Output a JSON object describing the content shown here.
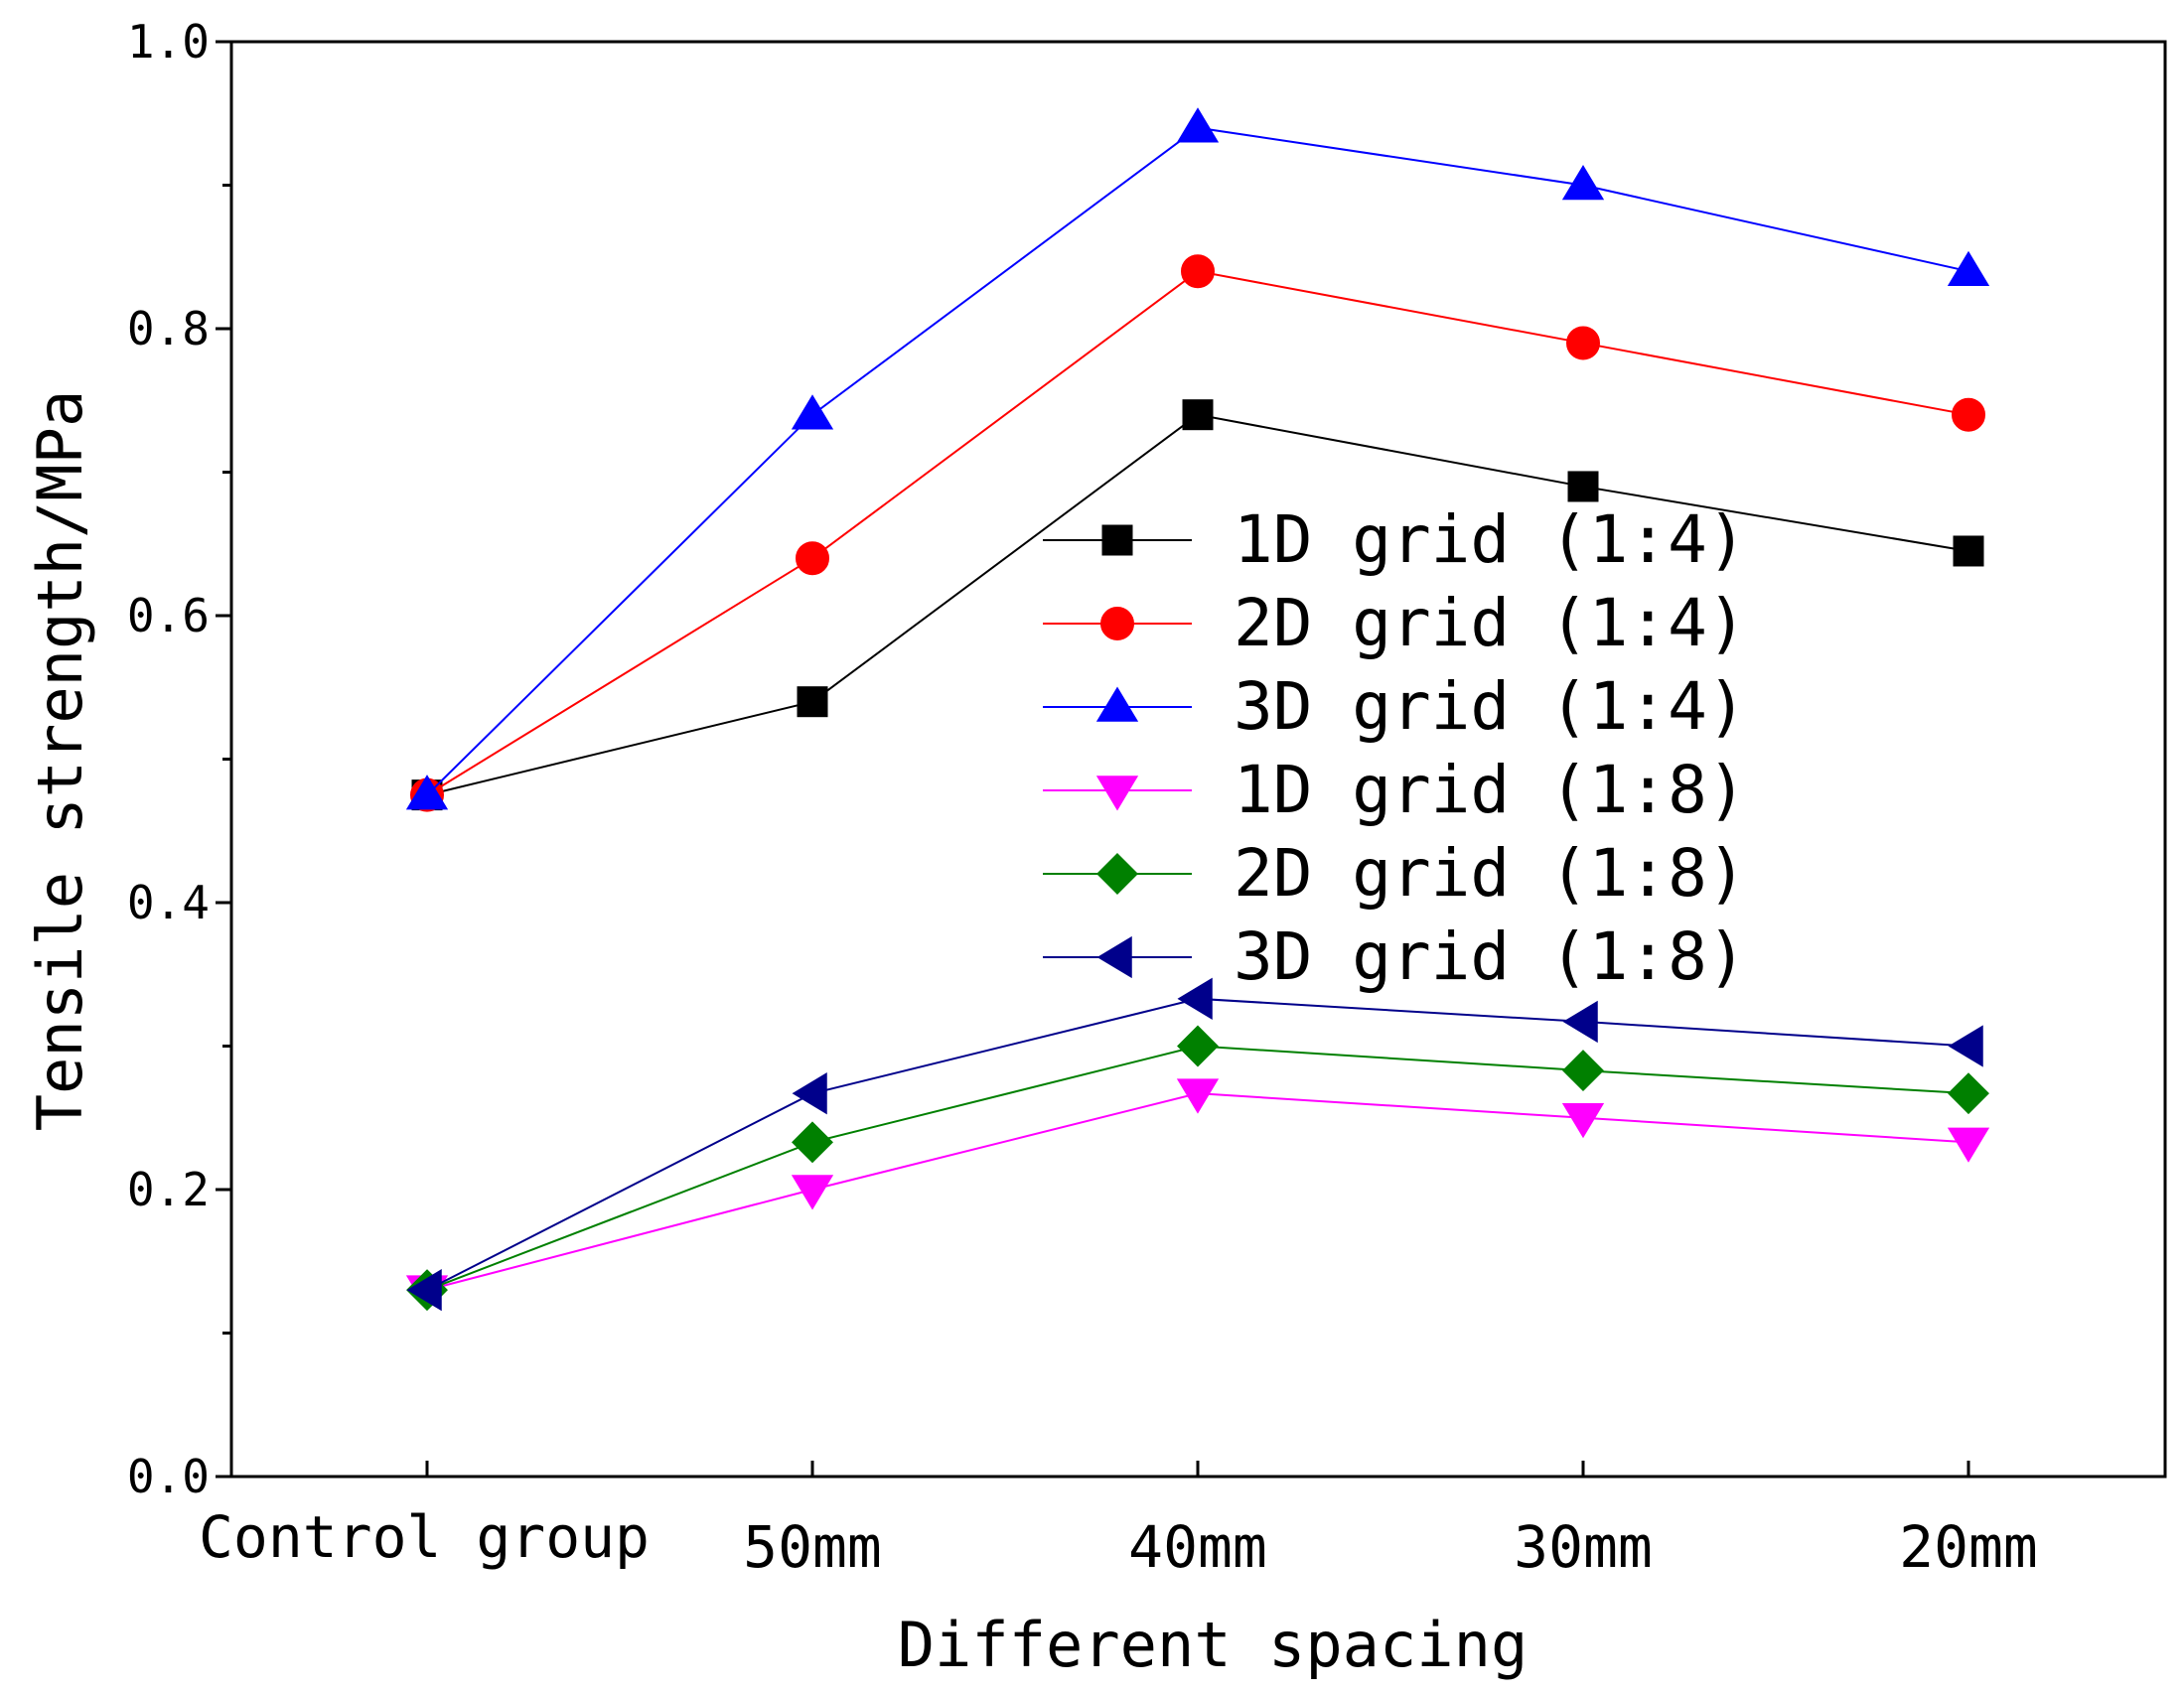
{
  "chart_data": {
    "type": "line",
    "title": "",
    "xlabel": "Different spacing",
    "ylabel": "Tensile strength/MPa",
    "categories": [
      "Control group",
      "50mm",
      "40mm",
      "30mm",
      "20mm"
    ],
    "ylim": [
      0.0,
      1.0
    ],
    "yticks": [
      "0.0",
      "0.2",
      "0.4",
      "0.6",
      "0.8",
      "1.0"
    ],
    "grid": false,
    "legend_position": "center-right",
    "series": [
      {
        "name": "1D grid (1:4)",
        "color": "#000000",
        "marker": "square",
        "values": [
          0.475,
          0.54,
          0.74,
          0.69,
          0.645
        ]
      },
      {
        "name": "2D grid (1:4)",
        "color": "#ff0000",
        "marker": "circle",
        "values": [
          0.475,
          0.64,
          0.84,
          0.79,
          0.74
        ]
      },
      {
        "name": "3D grid (1:4)",
        "color": "#0000ff",
        "marker": "triangle-up",
        "values": [
          0.475,
          0.74,
          0.94,
          0.9,
          0.84
        ]
      },
      {
        "name": "1D grid (1:8)",
        "color": "#ff00ff",
        "marker": "triangle-down",
        "values": [
          0.13,
          0.2,
          0.267,
          0.25,
          0.233
        ]
      },
      {
        "name": "2D grid (1:8)",
        "color": "#008000",
        "marker": "diamond",
        "values": [
          0.13,
          0.233,
          0.3,
          0.283,
          0.267
        ]
      },
      {
        "name": "3D grid (1:8)",
        "color": "#00008b",
        "marker": "triangle-left",
        "values": [
          0.13,
          0.267,
          0.333,
          0.317,
          0.3
        ]
      }
    ]
  }
}
